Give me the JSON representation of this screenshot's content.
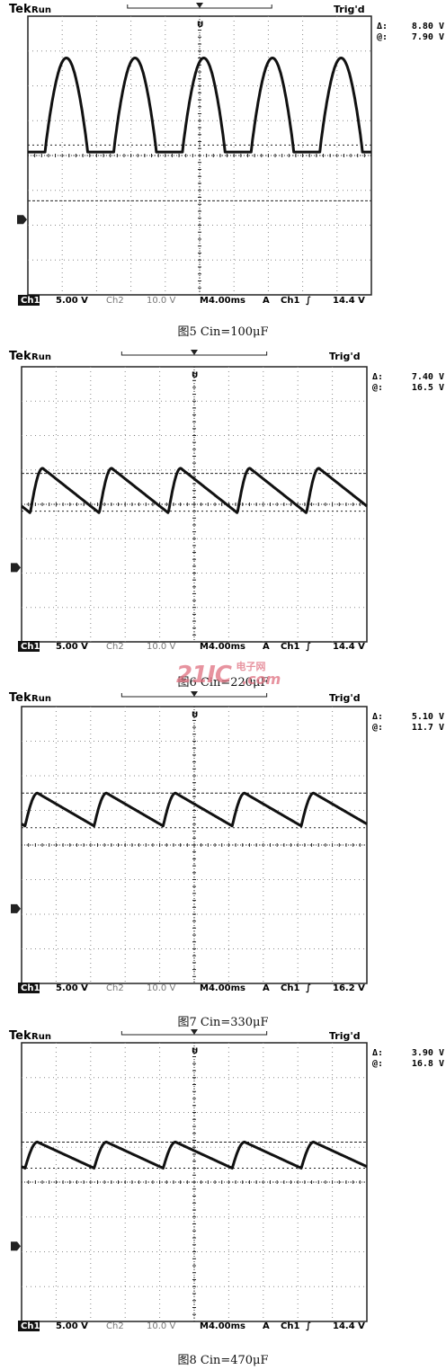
{
  "chart_data": [
    {
      "type": "line",
      "header": {
        "brand": "Tek",
        "mode": "Run",
        "trigger_status": "Trig'd"
      },
      "measurements": [
        {
          "symbol": "Δ:",
          "value": "8.80 V"
        },
        {
          "symbol": "@:",
          "value": "7.90 V"
        }
      ],
      "bottom": {
        "ch1_label": "Ch1",
        "ch1_scale": "5.00 V",
        "ch2_label": "Ch2",
        "ch2_scale": "10.0 V",
        "timebase": "M4.00ms",
        "trig_mode": "A",
        "trig_source": "Ch1",
        "trig_slope": "∫",
        "trig_level": "14.4 V"
      },
      "caption": "图5 Cin=100μF",
      "grid": true,
      "cursors_div": [
        2.7,
        4.3
      ],
      "wave": {
        "period_div": 2.0,
        "phase_div": 0.5,
        "min_div": 4.1,
        "max_div": 6.8,
        "shape": "rounded"
      }
    },
    {
      "type": "line",
      "header": {
        "brand": "Tek",
        "mode": "Run",
        "trigger_status": "Trig'd"
      },
      "measurements": [
        {
          "symbol": "Δ:",
          "value": "7.40 V"
        },
        {
          "symbol": "@:",
          "value": "16.5 V"
        }
      ],
      "bottom": {
        "ch1_label": "Ch1",
        "ch1_scale": "5.00 V",
        "ch2_label": "Ch2",
        "ch2_scale": "10.0 V",
        "timebase": "M4.00ms",
        "trig_mode": "A",
        "trig_source": "Ch1",
        "trig_slope": "∫",
        "trig_level": "14.4 V"
      },
      "caption": "图6 Cin=220μF",
      "grid": true,
      "cursors_div": [
        4.9,
        3.8
      ],
      "wave": {
        "period_div": 2.0,
        "phase_div": 0.25,
        "min_div": 3.75,
        "max_div": 5.05,
        "shape": "sawtooth"
      }
    },
    {
      "type": "line",
      "header": {
        "brand": "Tek",
        "mode": "Run",
        "trigger_status": "Trig'd"
      },
      "measurements": [
        {
          "symbol": "Δ:",
          "value": "5.10 V"
        },
        {
          "symbol": "@:",
          "value": "11.7 V"
        }
      ],
      "bottom": {
        "ch1_label": "Ch1",
        "ch1_scale": "5.00 V",
        "ch2_label": "Ch2",
        "ch2_scale": "10.0 V",
        "timebase": "M4.00ms",
        "trig_mode": "A",
        "trig_source": "Ch1",
        "trig_slope": "∫",
        "trig_level": "16.2 V"
      },
      "caption": "图7 Cin=330μF",
      "grid": true,
      "cursors_div": [
        5.5,
        4.5
      ],
      "wave": {
        "period_div": 2.0,
        "phase_div": 0.1,
        "min_div": 4.55,
        "max_div": 5.5,
        "shape": "sawtooth"
      }
    },
    {
      "type": "line",
      "header": {
        "brand": "Tek",
        "mode": "Run",
        "trigger_status": "Trig'd"
      },
      "measurements": [
        {
          "symbol": "Δ:",
          "value": "3.90 V"
        },
        {
          "symbol": "@:",
          "value": "16.8 V"
        }
      ],
      "bottom": {
        "ch1_label": "Ch1",
        "ch1_scale": "5.00 V",
        "ch2_label": "Ch2",
        "ch2_scale": "10.0 V",
        "timebase": "M4.00ms",
        "trig_mode": "A",
        "trig_source": "Ch1",
        "trig_slope": "∫",
        "trig_level": "14.4 V"
      },
      "caption": "图8 Cin=470μF",
      "grid": true,
      "cursors_div": [
        5.15,
        4.4
      ],
      "wave": {
        "period_div": 2.0,
        "phase_div": 0.1,
        "min_div": 4.4,
        "max_div": 5.15,
        "shape": "sawtooth"
      }
    }
  ],
  "watermark": {
    "brand": "21IC",
    "sub": "电子网",
    "domain": ".com"
  },
  "colors": {
    "trace": "#111111",
    "grid": "#888888",
    "frame": "#222222",
    "watermark": "#e07080"
  }
}
